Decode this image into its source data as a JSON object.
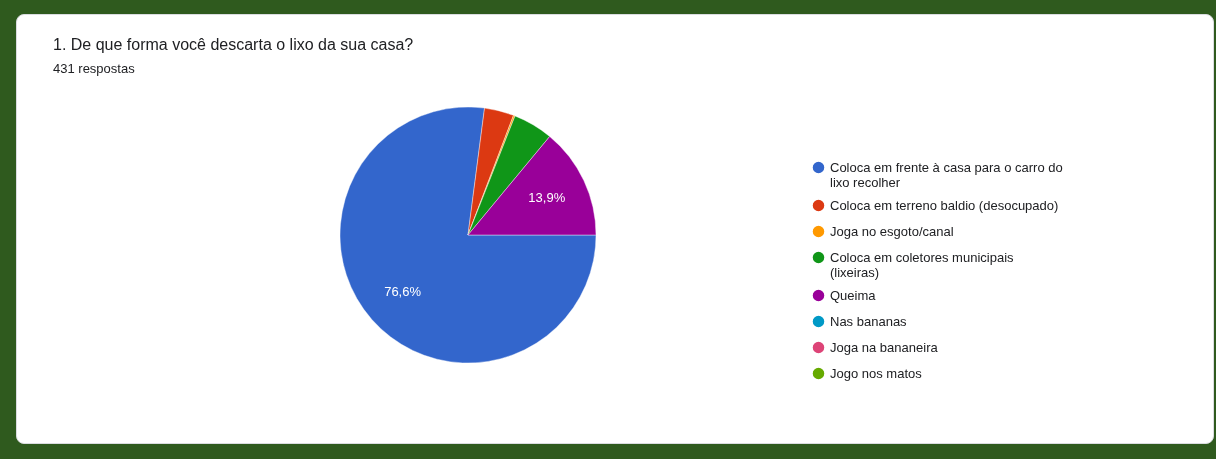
{
  "chart_data": {
    "type": "pie",
    "title": "1. De que forma você descarta o lixo da sua casa?",
    "subtitle": "431 respostas",
    "categories": [
      "Coloca em frente à casa para o carro do lixo recolher",
      "Coloca em terreno baldio (desocupado)",
      "Joga no esgoto/canal",
      "Coloca em coletores municipais (lixeiras)",
      "Queima",
      "Nas bananas",
      "Joga na bananeira",
      "Jogo nos matos"
    ],
    "values": [
      76.6,
      3.7,
      0.2,
      5.0,
      13.9,
      null,
      null,
      null
    ],
    "colors": [
      "#3366cc",
      "#dc3912",
      "#ff9900",
      "#109618",
      "#990099",
      "#0099c6",
      "#dd4477",
      "#66aa00"
    ],
    "value_labels": [
      "76,6%",
      null,
      null,
      null,
      "13,9%",
      null,
      null,
      null
    ],
    "legend": "right"
  }
}
